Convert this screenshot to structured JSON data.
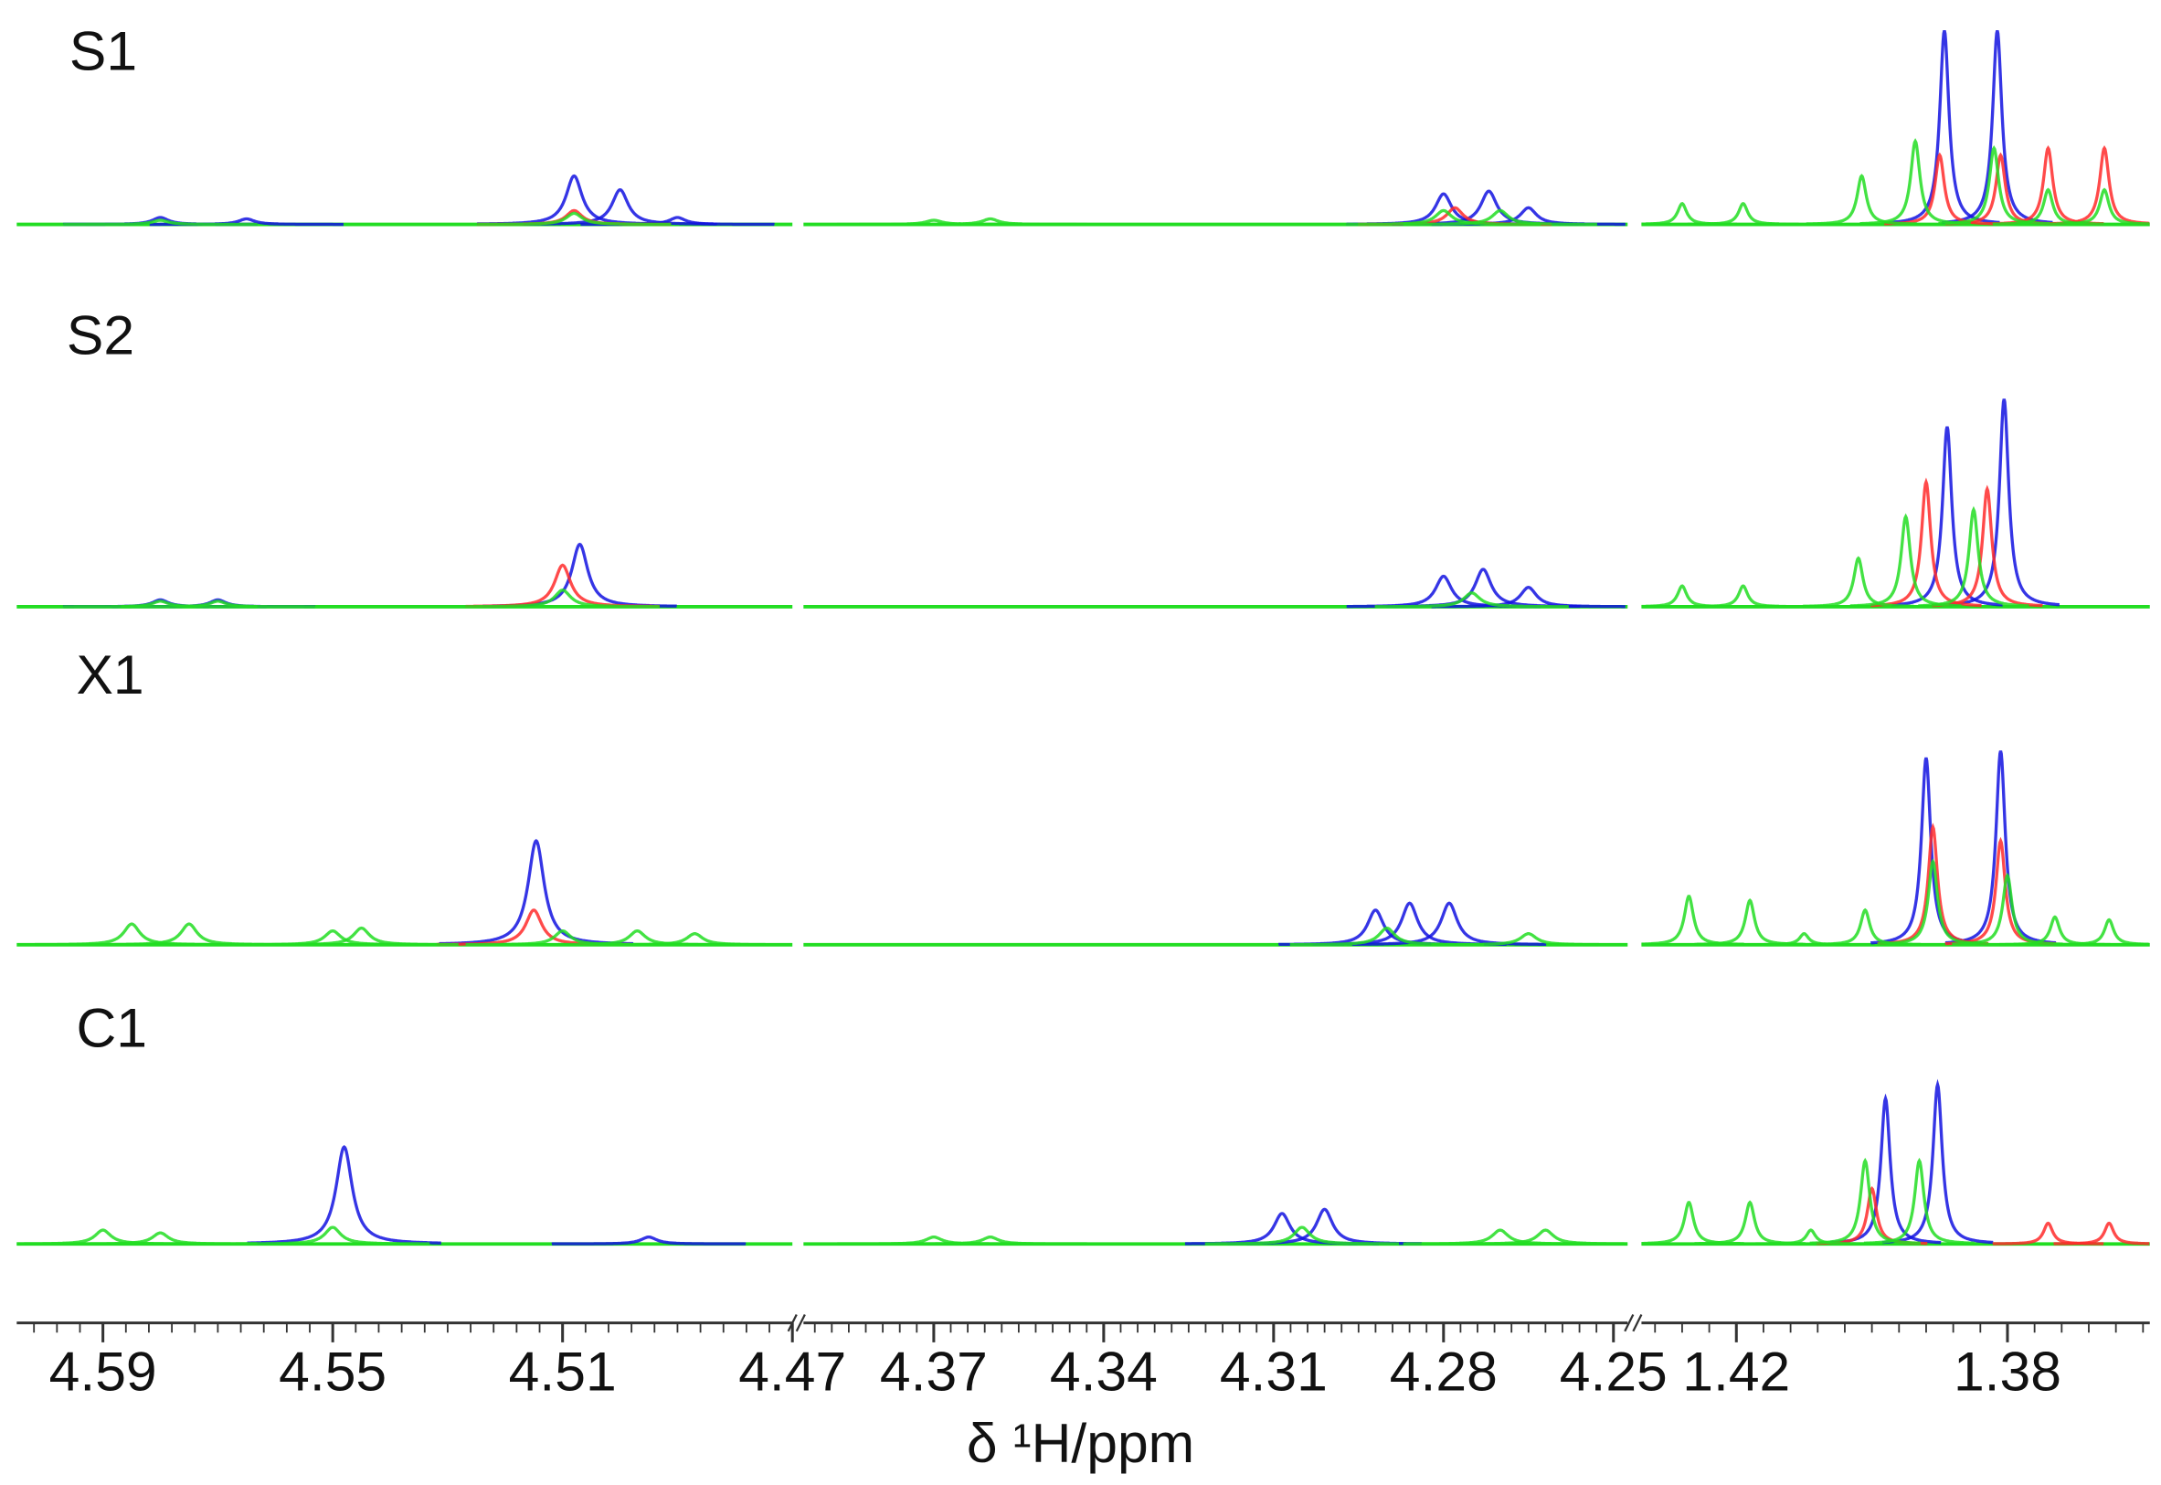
{
  "chart_data": {
    "type": "nmr",
    "xlabel": "δ ¹H/ppm",
    "ylim": [
      0,
      150
    ],
    "segments": [
      {
        "xlim": [
          4.605,
          4.47
        ],
        "xticks": [
          4.59,
          4.55,
          4.51,
          4.47
        ]
      },
      {
        "xlim": [
          4.393,
          4.2475
        ],
        "xticks": [
          4.37,
          4.34,
          4.31,
          4.28,
          4.25
        ]
      },
      {
        "xlim": [
          1.434,
          1.359
        ],
        "xticks": [
          1.42,
          1.38
        ]
      }
    ],
    "panels": [
      {
        "label": "S1",
        "series": [
          {
            "color": "#1212e0",
            "x": [
              4.58,
              4.565,
              4.508,
              4.5,
              4.49,
              4.28,
              4.272,
              4.265,
              1.3893,
              1.3815
            ],
            "values": [
              5,
              4,
              35,
              25,
              5,
              22,
              24,
              12,
              140,
              140
            ]
          },
          {
            "color": "#ff2a2a",
            "x": [
              4.508,
              4.278,
              1.39,
              1.381,
              1.374,
              1.3657
            ],
            "values": [
              10,
              12,
              50,
              50,
              55,
              55
            ]
          },
          {
            "color": "#22dd22",
            "x": [
              4.58,
              4.508,
              4.37,
              4.36,
              4.28,
              4.27,
              1.428,
              1.419,
              1.4015,
              1.3936,
              1.382,
              1.374,
              1.3657
            ],
            "values": [
              3,
              8,
              3,
              4,
              10,
              10,
              15,
              15,
              35,
              60,
              55,
              25,
              25
            ]
          }
        ]
      },
      {
        "label": "S2",
        "series": [
          {
            "color": "#1212e0",
            "x": [
              4.58,
              4.57,
              4.507,
              4.28,
              4.273,
              4.265,
              1.3889,
              1.3805
            ],
            "values": [
              5,
              5,
              45,
              22,
              27,
              14,
              130,
              150
            ]
          },
          {
            "color": "#ff2a2a",
            "x": [
              4.51,
              1.392,
              1.383
            ],
            "values": [
              30,
              90,
              85
            ]
          },
          {
            "color": "#22dd22",
            "x": [
              4.58,
              4.57,
              4.51,
              4.275,
              1.428,
              1.419,
              1.402,
              1.395,
              1.385
            ],
            "values": [
              4,
              4,
              12,
              10,
              15,
              15,
              35,
              65,
              70
            ]
          }
        ]
      },
      {
        "label": "X1",
        "series": [
          {
            "color": "#1212e0",
            "x": [
              4.5146,
              4.292,
              4.286,
              4.279,
              1.392,
              1.381
            ],
            "values": [
              75,
              25,
              30,
              30,
              135,
              140
            ]
          },
          {
            "color": "#ff2a2a",
            "x": [
              4.515,
              1.391,
              1.381
            ],
            "values": [
              25,
              85,
              75
            ]
          },
          {
            "color": "#22dd22",
            "x": [
              4.585,
              4.575,
              4.55,
              4.545,
              4.51,
              4.497,
              4.487,
              4.29,
              4.265,
              1.427,
              1.418,
              1.41,
              1.401,
              1.391,
              1.38,
              1.373,
              1.365
            ],
            "values": [
              15,
              15,
              10,
              12,
              10,
              10,
              8,
              12,
              8,
              35,
              32,
              8,
              25,
              60,
              50,
              20,
              18
            ]
          }
        ]
      },
      {
        "label": "C1",
        "series": [
          {
            "color": "#1212e0",
            "x": [
              4.548,
              4.495,
              4.3085,
              4.301,
              1.398,
              1.3903
            ],
            "values": [
              70,
              5,
              22,
              25,
              105,
              115
            ]
          },
          {
            "color": "#ff2a2a",
            "x": [
              1.4,
              1.374,
              1.365
            ],
            "values": [
              40,
              15,
              15
            ]
          },
          {
            "color": "#22dd22",
            "x": [
              4.59,
              4.58,
              4.55,
              4.37,
              4.36,
              4.305,
              4.27,
              4.262,
              1.427,
              1.418,
              1.409,
              1.401,
              1.393
            ],
            "values": [
              10,
              8,
              12,
              5,
              5,
              12,
              10,
              10,
              30,
              30,
              10,
              60,
              60
            ]
          }
        ]
      }
    ]
  }
}
